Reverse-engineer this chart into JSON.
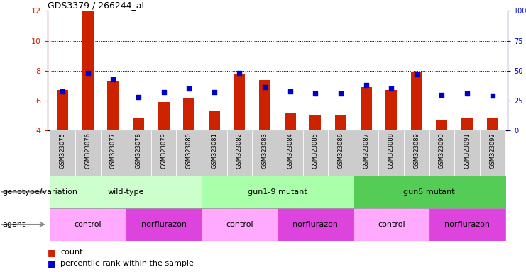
{
  "title": "GDS3379 / 266244_at",
  "samples": [
    "GSM323075",
    "GSM323076",
    "GSM323077",
    "GSM323078",
    "GSM323079",
    "GSM323080",
    "GSM323081",
    "GSM323082",
    "GSM323083",
    "GSM323084",
    "GSM323085",
    "GSM323086",
    "GSM323087",
    "GSM323088",
    "GSM323089",
    "GSM323090",
    "GSM323091",
    "GSM323092"
  ],
  "counts": [
    6.7,
    12.0,
    7.3,
    4.8,
    5.9,
    6.2,
    5.3,
    7.8,
    7.4,
    5.2,
    5.0,
    5.0,
    6.9,
    6.7,
    7.9,
    4.7,
    4.8,
    4.8
  ],
  "percentile_ranks": [
    33,
    48,
    43,
    28,
    32,
    35,
    32,
    48,
    36,
    33,
    31,
    31,
    38,
    35,
    47,
    30,
    31,
    29
  ],
  "ylim_left": [
    4,
    12
  ],
  "ylim_right": [
    0,
    100
  ],
  "yticks_left": [
    4,
    6,
    8,
    10,
    12
  ],
  "yticks_right": [
    0,
    25,
    50,
    75,
    100
  ],
  "bar_color": "#cc2200",
  "dot_color": "#0000cc",
  "genotype_groups": [
    {
      "label": "wild-type",
      "start": 0,
      "end": 5,
      "color": "#ccffcc"
    },
    {
      "label": "gun1-9 mutant",
      "start": 6,
      "end": 11,
      "color": "#aaffaa"
    },
    {
      "label": "gun5 mutant",
      "start": 12,
      "end": 17,
      "color": "#55cc55"
    }
  ],
  "agent_groups": [
    {
      "label": "control",
      "start": 0,
      "end": 2,
      "color": "#ffaaff"
    },
    {
      "label": "norflurazon",
      "start": 3,
      "end": 5,
      "color": "#dd44dd"
    },
    {
      "label": "control",
      "start": 6,
      "end": 8,
      "color": "#ffaaff"
    },
    {
      "label": "norflurazon",
      "start": 9,
      "end": 11,
      "color": "#dd44dd"
    },
    {
      "label": "control",
      "start": 12,
      "end": 14,
      "color": "#ffaaff"
    },
    {
      "label": "norflurazon",
      "start": 15,
      "end": 17,
      "color": "#dd44dd"
    }
  ],
  "group_boundaries": [
    5.5,
    11.5
  ],
  "genotype_label": "genotype/variation",
  "agent_label": "agent",
  "legend_count": "count",
  "legend_percentile": "percentile rank within the sample",
  "ticklabel_bg": "#cccccc"
}
